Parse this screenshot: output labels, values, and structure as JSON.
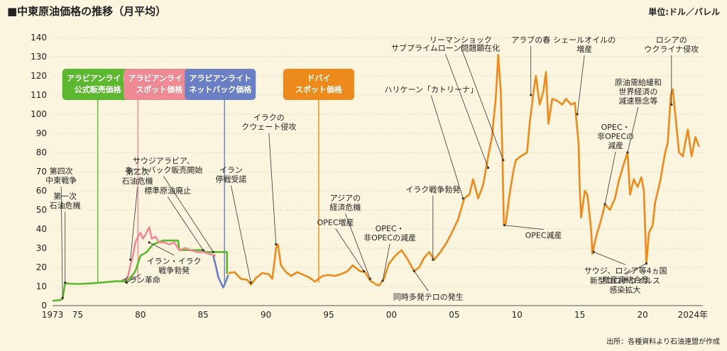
{
  "title": "■中東原油価格の推移（月平均）",
  "unit_label": "単位:ドル／バレル",
  "source_note": "出所：各種資料より石油連盟が作成",
  "chart_data": {
    "type": "line",
    "xlim": [
      1973,
      2024.8
    ],
    "ylim": [
      0,
      140
    ],
    "y_ticks": [
      0,
      10,
      20,
      30,
      40,
      50,
      60,
      70,
      80,
      90,
      100,
      110,
      120,
      130,
      140
    ],
    "x_ticks": [
      {
        "value": 1973,
        "label": "1973"
      },
      {
        "value": 1975,
        "label": "75"
      },
      {
        "value": 1980,
        "label": "80"
      },
      {
        "value": 1985,
        "label": "85"
      },
      {
        "value": 1990,
        "label": "90"
      },
      {
        "value": 1995,
        "label": "95"
      },
      {
        "value": 2000,
        "label": "00"
      },
      {
        "value": 2005,
        "label": "05"
      },
      {
        "value": 2010,
        "label": "10"
      },
      {
        "value": 2015,
        "label": "15"
      },
      {
        "value": 2020,
        "label": "20"
      },
      {
        "value": 2024,
        "label": "2024年"
      }
    ],
    "series": [
      {
        "name": "アラビアンライト公式販売価格",
        "color": "#5cb82e",
        "points": [
          [
            1973.0,
            2.5
          ],
          [
            1973.6,
            2.9
          ],
          [
            1973.8,
            3.6
          ],
          [
            1974.0,
            11.6
          ],
          [
            1975.0,
            11.3
          ],
          [
            1976.0,
            11.6
          ],
          [
            1977.0,
            12.1
          ],
          [
            1978.0,
            12.7
          ],
          [
            1978.9,
            12.7
          ],
          [
            1979.2,
            14.5
          ],
          [
            1979.6,
            18.0
          ],
          [
            1980.0,
            26.0
          ],
          [
            1980.5,
            28.0
          ],
          [
            1981.0,
            32.0
          ],
          [
            1981.8,
            34.0
          ],
          [
            1983.0,
            34.0
          ],
          [
            1983.1,
            29.0
          ],
          [
            1985.0,
            29.0
          ],
          [
            1985.2,
            28.0
          ],
          [
            1986.9,
            28.0
          ],
          [
            1986.9,
            16.5
          ]
        ]
      },
      {
        "name": "アラビアンライトスポット価格",
        "color": "#ee8a93",
        "points": [
          [
            1978.8,
            13.0
          ],
          [
            1979.0,
            15.0
          ],
          [
            1979.2,
            21.0
          ],
          [
            1979.4,
            26.0
          ],
          [
            1979.6,
            33.0
          ],
          [
            1979.8,
            36.0
          ],
          [
            1980.0,
            38.0
          ],
          [
            1980.2,
            35.0
          ],
          [
            1980.4,
            37.0
          ],
          [
            1980.7,
            41.0
          ],
          [
            1980.9,
            35.0
          ],
          [
            1981.2,
            36.0
          ],
          [
            1981.5,
            33.0
          ],
          [
            1981.9,
            33.0
          ],
          [
            1982.3,
            32.0
          ],
          [
            1982.7,
            33.0
          ],
          [
            1983.1,
            29.0
          ],
          [
            1983.6,
            30.0
          ],
          [
            1984.0,
            29.0
          ],
          [
            1984.5,
            28.0
          ],
          [
            1985.0,
            28.0
          ],
          [
            1985.5,
            27.0
          ],
          [
            1986.0,
            26.0
          ]
        ]
      },
      {
        "name": "アラビアンライトネットバック価格",
        "color": "#6b7fc4",
        "points": [
          [
            1985.8,
            26.0
          ],
          [
            1986.0,
            21.0
          ],
          [
            1986.2,
            15.0
          ],
          [
            1986.4,
            12.0
          ],
          [
            1986.6,
            9.5
          ],
          [
            1986.8,
            12.5
          ],
          [
            1987.0,
            16.0
          ]
        ]
      },
      {
        "name": "ドバイスポット価格",
        "color": "#ec8a1c",
        "points": [
          [
            1987.0,
            17.0
          ],
          [
            1987.5,
            17.5
          ],
          [
            1988.0,
            14.0
          ],
          [
            1988.5,
            13.5
          ],
          [
            1988.8,
            11.0
          ],
          [
            1989.2,
            14.5
          ],
          [
            1989.7,
            17.0
          ],
          [
            1990.2,
            16.5
          ],
          [
            1990.5,
            14.0
          ],
          [
            1990.7,
            24.0
          ],
          [
            1990.8,
            30.0
          ],
          [
            1990.95,
            32.0
          ],
          [
            1991.2,
            21.0
          ],
          [
            1991.6,
            17.5
          ],
          [
            1992.0,
            15.5
          ],
          [
            1992.5,
            17.5
          ],
          [
            1993.0,
            16.0
          ],
          [
            1993.5,
            14.5
          ],
          [
            1993.9,
            12.5
          ],
          [
            1994.5,
            15.5
          ],
          [
            1995.0,
            16.0
          ],
          [
            1995.5,
            15.5
          ],
          [
            1996.0,
            16.5
          ],
          [
            1996.5,
            18.0
          ],
          [
            1996.9,
            21.0
          ],
          [
            1997.5,
            18.0
          ],
          [
            1997.9,
            17.5
          ],
          [
            1998.3,
            13.0
          ],
          [
            1998.8,
            11.0
          ],
          [
            1999.0,
            10.5
          ],
          [
            1999.4,
            14.0
          ],
          [
            1999.8,
            22.0
          ],
          [
            2000.3,
            26.0
          ],
          [
            2000.8,
            29.0
          ],
          [
            2001.3,
            24.0
          ],
          [
            2001.8,
            18.0
          ],
          [
            2002.2,
            20.0
          ],
          [
            2002.6,
            25.0
          ],
          [
            2003.0,
            28.0
          ],
          [
            2003.4,
            24.0
          ],
          [
            2003.9,
            28.0
          ],
          [
            2004.4,
            33.0
          ],
          [
            2004.8,
            38.0
          ],
          [
            2005.3,
            45.0
          ],
          [
            2005.8,
            56.0
          ],
          [
            2006.2,
            58.0
          ],
          [
            2006.5,
            66.0
          ],
          [
            2006.9,
            56.0
          ],
          [
            2007.3,
            63.0
          ],
          [
            2007.7,
            78.0
          ],
          [
            2008.0,
            88.0
          ],
          [
            2008.3,
            108.0
          ],
          [
            2008.5,
            131.0
          ],
          [
            2008.7,
            112.0
          ],
          [
            2008.85,
            75.0
          ],
          [
            2008.95,
            42.0
          ],
          [
            2009.1,
            43.0
          ],
          [
            2009.4,
            58.0
          ],
          [
            2009.7,
            70.0
          ],
          [
            2009.9,
            76.0
          ],
          [
            2010.3,
            78.0
          ],
          [
            2010.8,
            80.0
          ],
          [
            2011.0,
            95.0
          ],
          [
            2011.3,
            111.0
          ],
          [
            2011.5,
            120.0
          ],
          [
            2011.8,
            105.0
          ],
          [
            2012.1,
            112.0
          ],
          [
            2012.3,
            122.0
          ],
          [
            2012.5,
            95.0
          ],
          [
            2012.8,
            108.0
          ],
          [
            2013.2,
            107.0
          ],
          [
            2013.6,
            105.0
          ],
          [
            2013.9,
            108.0
          ],
          [
            2014.3,
            105.0
          ],
          [
            2014.6,
            106.0
          ],
          [
            2014.9,
            85.0
          ],
          [
            2015.0,
            60.0
          ],
          [
            2015.1,
            46.0
          ],
          [
            2015.4,
            60.0
          ],
          [
            2015.6,
            58.0
          ],
          [
            2015.9,
            40.0
          ],
          [
            2016.0,
            27.0
          ],
          [
            2016.3,
            36.0
          ],
          [
            2016.7,
            45.0
          ],
          [
            2017.0,
            53.0
          ],
          [
            2017.4,
            50.0
          ],
          [
            2017.8,
            56.0
          ],
          [
            2018.1,
            65.0
          ],
          [
            2018.5,
            74.0
          ],
          [
            2018.8,
            80.0
          ],
          [
            2019.0,
            58.0
          ],
          [
            2019.3,
            66.0
          ],
          [
            2019.6,
            62.0
          ],
          [
            2019.9,
            67.0
          ],
          [
            2020.1,
            60.0
          ],
          [
            2020.3,
            22.0
          ],
          [
            2020.5,
            38.0
          ],
          [
            2020.8,
            42.0
          ],
          [
            2021.0,
            54.0
          ],
          [
            2021.4,
            65.0
          ],
          [
            2021.8,
            80.0
          ],
          [
            2022.0,
            85.0
          ],
          [
            2022.25,
            110.0
          ],
          [
            2022.4,
            113.0
          ],
          [
            2022.6,
            100.0
          ],
          [
            2022.9,
            80.0
          ],
          [
            2023.2,
            78.0
          ],
          [
            2023.6,
            92.0
          ],
          [
            2023.9,
            78.0
          ],
          [
            2024.2,
            88.0
          ],
          [
            2024.5,
            83.0
          ]
        ]
      }
    ],
    "boxes": [
      {
        "lines": [
          "アラビアンライト",
          "公式販売価格"
        ],
        "color": "#5cb82e",
        "anchor_year": 1976.6
      },
      {
        "lines": [
          "アラビアンライト",
          "スポット価格"
        ],
        "color": "#ee8a93",
        "anchor_year": 1979.8
      },
      {
        "lines": [
          "アラビアンライト",
          "ネットバック価格"
        ],
        "color": "#6b7fc4",
        "anchor_year": 1986.7
      },
      {
        "lines": [
          "ドバイ",
          "スポット価格"
        ],
        "color": "#ec8a1c",
        "anchor_year": 1994.2
      }
    ],
    "annotations": [
      {
        "text": [
          "第四次",
          "中東戦争"
        ],
        "year": 1973.8,
        "value": 4
      },
      {
        "text": [
          "第一次",
          "石油危機"
        ],
        "year": 1974.0,
        "value": 12
      },
      {
        "text": [
          "第二次",
          "石油危機"
        ],
        "year": 1979.2,
        "value": 24
      },
      {
        "text": [
          "イラン革命"
        ],
        "year": 1978.9,
        "value": 12
      },
      {
        "text": [
          "イラン・イラク",
          "戦争勃発"
        ],
        "year": 1980.7,
        "value": 33
      },
      {
        "text": [
          "標準原油廃止"
        ],
        "year": 1985.0,
        "value": 29
      },
      {
        "text": [
          "サウジアラビア、",
          "ネットバック販売開始"
        ],
        "year": 1985.8,
        "value": 28
      },
      {
        "text": [
          "イラン",
          "停戦受諾"
        ],
        "year": 1988.8,
        "value": 12
      },
      {
        "text": [
          "イラクの",
          "クウェート侵攻"
        ],
        "year": 1990.8,
        "value": 32
      },
      {
        "text": [
          "OPEC増産"
        ],
        "year": 1997.8,
        "value": 18
      },
      {
        "text": [
          "アジアの",
          "経済危機"
        ],
        "year": 1998.3,
        "value": 14
      },
      {
        "text": [
          "OPEC・",
          "非OPECの減産"
        ],
        "year": 1999.3,
        "value": 13
      },
      {
        "text": [
          "同時多発テロの発生"
        ],
        "year": 2001.8,
        "value": 18
      },
      {
        "text": [
          "イラク戦争勃発"
        ],
        "year": 2003.3,
        "value": 24
      },
      {
        "text": [
          "ハリケーン「カトリーナ」"
        ],
        "year": 2005.7,
        "value": 56
      },
      {
        "text": [
          "サブプライムローン問題顕在化"
        ],
        "year": 2007.7,
        "value": 72
      },
      {
        "text": [
          "リーマンショック"
        ],
        "year": 2008.9,
        "value": 76
      },
      {
        "text": [
          "OPEC減産"
        ],
        "year": 2009.0,
        "value": 42
      },
      {
        "text": [
          "アラブの春"
        ],
        "year": 2011.1,
        "value": 110
      },
      {
        "text": [
          "シェールオイルの",
          "増産"
        ],
        "year": 2014.8,
        "value": 100
      },
      {
        "text": [
          "サウジ、ロシア等4ヵ国",
          "増産凍結合意"
        ],
        "year": 2016.1,
        "value": 28
      },
      {
        "text": [
          "OPEC・",
          "非OPECの",
          "減産"
        ],
        "year": 2017.0,
        "value": 53
      },
      {
        "text": [
          "原油需給緩和",
          "世界経済の",
          "減速懸念等"
        ],
        "year": 2018.8,
        "value": 80
      },
      {
        "text": [
          "新型コロナウイルス",
          "感染拡大"
        ],
        "year": 2020.3,
        "value": 22
      },
      {
        "text": [
          "ロシアの",
          "ウクライナ侵攻"
        ],
        "year": 2022.3,
        "value": 105
      }
    ]
  }
}
